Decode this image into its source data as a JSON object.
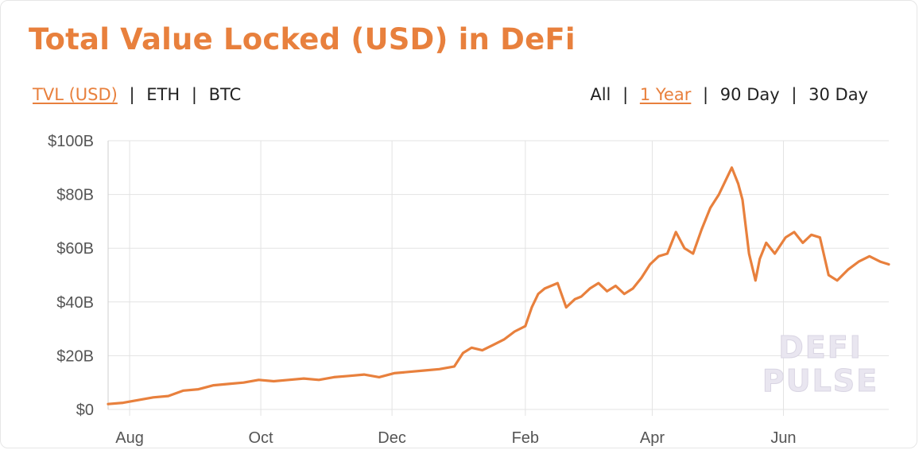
{
  "title": "Total Value Locked (USD) in DeFi",
  "metric_options": [
    {
      "label": "TVL (USD)",
      "active": true
    },
    {
      "label": "ETH",
      "active": false
    },
    {
      "label": "BTC",
      "active": false
    }
  ],
  "range_options": [
    {
      "label": "All",
      "active": false
    },
    {
      "label": "1 Year",
      "active": true
    },
    {
      "label": "90 Day",
      "active": false
    },
    {
      "label": "30 Day",
      "active": false
    }
  ],
  "separator": "|",
  "watermark": [
    "DEFI",
    "PULSE"
  ],
  "colors": {
    "accent": "#e8803d",
    "line": "#e8803d",
    "grid": "#e3e3e3",
    "text": "#222222"
  },
  "chart_data": {
    "type": "line",
    "title": "Total Value Locked (USD) in DeFi",
    "xlabel": "",
    "ylabel": "",
    "ylim": [
      0,
      100
    ],
    "yticks": [
      0,
      20,
      40,
      60,
      80,
      100
    ],
    "ytick_labels": [
      "$0",
      "$20B",
      "$40B",
      "$60B",
      "$80B",
      "$100B"
    ],
    "xlim": [
      "2020-07-22",
      "2021-07-20"
    ],
    "xticks": [
      "2020-08-01",
      "2020-10-01",
      "2020-12-01",
      "2021-02-01",
      "2021-04-01",
      "2021-06-01"
    ],
    "xtick_labels": [
      "Aug",
      "Oct",
      "Dec",
      "Feb",
      "Apr",
      "Jun"
    ],
    "grid": true,
    "legend": "none",
    "units": "USD billions",
    "series": [
      {
        "x": [
          "2020-07-22",
          "2020-07-29",
          "2020-08-05",
          "2020-08-12",
          "2020-08-19",
          "2020-08-26",
          "2020-09-02",
          "2020-09-09",
          "2020-09-16",
          "2020-09-23",
          "2020-09-30",
          "2020-10-07",
          "2020-10-14",
          "2020-10-21",
          "2020-10-28",
          "2020-11-04",
          "2020-11-11",
          "2020-11-18",
          "2020-11-25",
          "2020-12-02",
          "2020-12-09",
          "2020-12-16",
          "2020-12-23",
          "2020-12-30",
          "2021-01-03",
          "2021-01-07",
          "2021-01-12",
          "2021-01-17",
          "2021-01-22",
          "2021-01-27",
          "2021-02-01",
          "2021-02-04",
          "2021-02-07",
          "2021-02-10",
          "2021-02-13",
          "2021-02-16",
          "2021-02-20",
          "2021-02-24",
          "2021-02-27",
          "2021-03-03",
          "2021-03-07",
          "2021-03-11",
          "2021-03-15",
          "2021-03-19",
          "2021-03-23",
          "2021-03-27",
          "2021-03-31",
          "2021-04-04",
          "2021-04-08",
          "2021-04-12",
          "2021-04-16",
          "2021-04-20",
          "2021-04-24",
          "2021-04-28",
          "2021-05-02",
          "2021-05-05",
          "2021-05-08",
          "2021-05-11",
          "2021-05-13",
          "2021-05-16",
          "2021-05-19",
          "2021-05-21",
          "2021-05-24",
          "2021-05-28",
          "2021-06-02",
          "2021-06-06",
          "2021-06-10",
          "2021-06-14",
          "2021-06-18",
          "2021-06-22",
          "2021-06-26",
          "2021-07-01",
          "2021-07-06",
          "2021-07-11",
          "2021-07-16",
          "2021-07-20"
        ],
        "y": [
          2,
          2.5,
          3.5,
          4.5,
          5,
          7,
          7.5,
          9,
          9.5,
          10,
          11,
          10.5,
          11,
          11.5,
          11,
          12,
          12.5,
          13,
          12,
          13.5,
          14,
          14.5,
          15,
          16,
          21,
          23,
          22,
          24,
          26,
          29,
          31,
          38,
          43,
          45,
          46,
          47,
          38,
          41,
          42,
          45,
          47,
          44,
          46,
          43,
          45,
          49,
          54,
          57,
          58,
          66,
          60,
          58,
          67,
          75,
          80,
          85,
          90,
          84,
          78,
          58,
          48,
          56,
          62,
          58,
          64,
          66,
          62,
          65,
          64,
          50,
          48,
          52,
          55,
          57,
          55,
          54
        ]
      }
    ]
  }
}
